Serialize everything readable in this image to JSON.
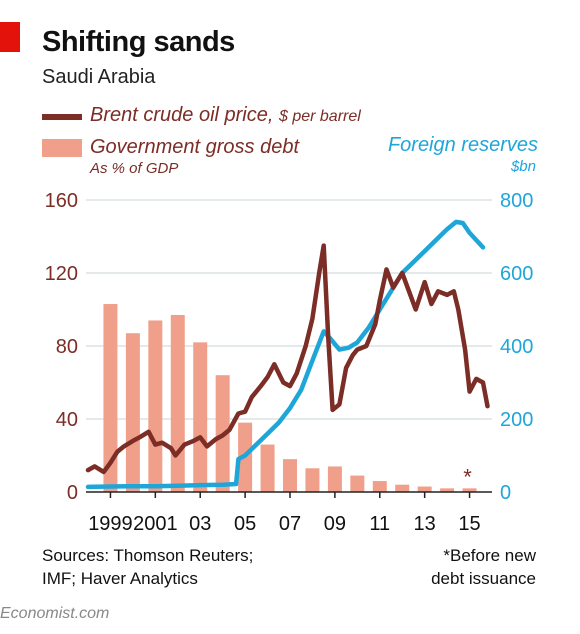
{
  "header": {
    "title": "Shifting sands",
    "subtitle": "Saudi Arabia"
  },
  "legend": {
    "oil_label": "Brent crude oil price,",
    "oil_unit": "$ per barrel",
    "debt_label": "Government gross debt",
    "debt_unit": "As % of GDP",
    "reserves_label": "Foreign reserves",
    "reserves_unit": "$bn"
  },
  "colors": {
    "oil": "#7b2d26",
    "debt": "#f0a08a",
    "reserves": "#1fa6d9",
    "accent": "#e3120b"
  },
  "footer": {
    "sources_line1": "Sources: Thomson Reuters;",
    "sources_line2": "IMF; Haver Analytics",
    "note_line1": "*Before new",
    "note_line2": "debt issuance",
    "brand": "Economist.com"
  },
  "chart_data": {
    "type": "bar+line",
    "x_range": [
      1998,
      2016
    ],
    "x_tick_values": [
      1999,
      2001,
      2003,
      2005,
      2007,
      2009,
      2011,
      2013,
      2015
    ],
    "x_tick_labels": [
      "1999",
      "2001",
      "03",
      "05",
      "07",
      "09",
      "11",
      "13",
      "15"
    ],
    "left_axis": {
      "ylim": [
        0,
        160
      ],
      "ticks": [
        0,
        40,
        80,
        120,
        160
      ]
    },
    "right_axis": {
      "ylim": [
        0,
        800
      ],
      "ticks": [
        0,
        200,
        400,
        600,
        800
      ]
    },
    "grid": true,
    "bar_annotation": "*",
    "series": [
      {
        "name": "Government gross debt",
        "type": "bar",
        "axis": "left",
        "years": [
          1999,
          2000,
          2001,
          2002,
          2003,
          2004,
          2005,
          2006,
          2007,
          2008,
          2009,
          2010,
          2011,
          2012,
          2013,
          2014,
          2015
        ],
        "values": [
          103,
          87,
          94,
          97,
          82,
          64,
          38,
          26,
          18,
          13,
          14,
          9,
          6,
          4,
          3,
          2,
          2
        ]
      },
      {
        "name": "Brent crude oil price",
        "type": "line",
        "axis": "left",
        "x": [
          1998.0,
          1998.3,
          1998.7,
          1999.0,
          1999.3,
          1999.6,
          2000.0,
          2000.3,
          2000.7,
          2001.0,
          2001.3,
          2001.7,
          2001.9,
          2002.3,
          2002.7,
          2003.0,
          2003.3,
          2003.7,
          2004.0,
          2004.3,
          2004.7,
          2005.0,
          2005.3,
          2005.7,
          2006.0,
          2006.3,
          2006.7,
          2007.0,
          2007.3,
          2007.7,
          2008.0,
          2008.3,
          2008.5,
          2008.7,
          2008.9,
          2009.2,
          2009.5,
          2009.8,
          2010.0,
          2010.4,
          2010.8,
          2011.0,
          2011.3,
          2011.6,
          2012.0,
          2012.3,
          2012.6,
          2013.0,
          2013.3,
          2013.6,
          2014.0,
          2014.3,
          2014.5,
          2014.8,
          2015.0,
          2015.3,
          2015.6,
          2015.8
        ],
        "values": [
          12,
          14,
          11,
          16,
          22,
          25,
          28,
          30,
          33,
          26,
          27,
          24,
          20,
          26,
          28,
          30,
          25,
          29,
          31,
          34,
          43,
          44,
          52,
          58,
          63,
          70,
          60,
          58,
          65,
          80,
          95,
          120,
          135,
          85,
          45,
          48,
          68,
          75,
          78,
          80,
          92,
          105,
          122,
          112,
          120,
          110,
          100,
          115,
          103,
          110,
          108,
          110,
          100,
          78,
          55,
          62,
          60,
          47
        ]
      },
      {
        "name": "Foreign reserves",
        "type": "line",
        "axis": "right",
        "x": [
          1998.0,
          1999.0,
          2000.0,
          2001.0,
          2002.0,
          2003.0,
          2004.0,
          2004.6,
          2004.7,
          2005.0,
          2005.5,
          2006.0,
          2006.5,
          2007.0,
          2007.5,
          2008.0,
          2008.5,
          2008.8,
          2009.2,
          2009.6,
          2010.0,
          2010.5,
          2011.0,
          2011.5,
          2012.0,
          2012.5,
          2013.0,
          2013.5,
          2014.0,
          2014.4,
          2014.7,
          2015.0,
          2015.3,
          2015.6
        ],
        "values": [
          14,
          15,
          16,
          16,
          17,
          19,
          20,
          22,
          90,
          100,
          130,
          160,
          190,
          230,
          280,
          360,
          440,
          420,
          390,
          395,
          410,
          450,
          500,
          550,
          600,
          630,
          660,
          690,
          720,
          740,
          737,
          710,
          690,
          670
        ]
      }
    ]
  }
}
